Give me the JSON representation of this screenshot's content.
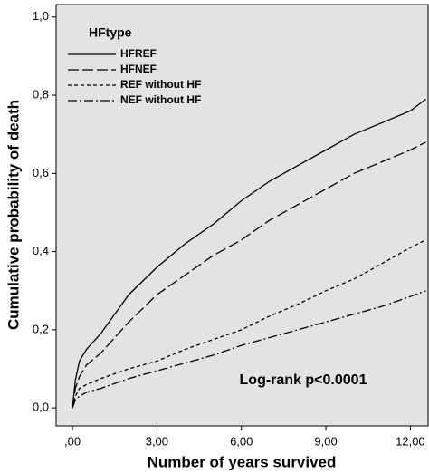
{
  "chart_data": {
    "type": "line",
    "xlabel": "Number of years survived",
    "ylabel": "Cumulative probability of death",
    "legend_title": "HFtype",
    "legend": "upper left",
    "annotation": "Log-rank p<0.0001",
    "x": [
      0,
      0.1,
      0.25,
      0.5,
      1,
      2,
      3,
      4,
      5,
      6,
      7,
      8,
      9,
      10,
      11,
      12,
      12.55
    ],
    "series": [
      {
        "name": "HFREF",
        "color": "#000000",
        "style": "solid",
        "values": [
          0,
          0.07,
          0.12,
          0.15,
          0.19,
          0.29,
          0.36,
          0.42,
          0.47,
          0.53,
          0.58,
          0.62,
          0.66,
          0.7,
          0.73,
          0.76,
          0.79
        ]
      },
      {
        "name": "HFNEF",
        "color": "#000000",
        "style": "long-dash",
        "values": [
          0,
          0.05,
          0.08,
          0.11,
          0.14,
          0.22,
          0.29,
          0.34,
          0.39,
          0.43,
          0.48,
          0.52,
          0.56,
          0.6,
          0.63,
          0.66,
          0.68
        ]
      },
      {
        "name": "REF without HF",
        "color": "#000000",
        "style": "short-dash",
        "values": [
          0,
          0.03,
          0.05,
          0.06,
          0.075,
          0.1,
          0.12,
          0.15,
          0.175,
          0.2,
          0.235,
          0.265,
          0.3,
          0.33,
          0.37,
          0.41,
          0.43
        ]
      },
      {
        "name": "NEF without HF",
        "color": "#000000",
        "style": "dash-dot",
        "values": [
          0,
          0.02,
          0.03,
          0.04,
          0.05,
          0.075,
          0.095,
          0.115,
          0.135,
          0.16,
          0.18,
          0.2,
          0.22,
          0.24,
          0.26,
          0.285,
          0.3
        ]
      }
    ],
    "xlim": [
      -0.58,
      12.63
    ],
    "ylim": [
      -0.046,
      1.032
    ],
    "xticks": [
      {
        "value": 0,
        "label": ",00"
      },
      {
        "value": 3,
        "label": "3,00"
      },
      {
        "value": 6,
        "label": "6,00"
      },
      {
        "value": 9,
        "label": "9,00"
      },
      {
        "value": 12,
        "label": "12,00"
      }
    ],
    "yticks": [
      {
        "value": 0,
        "label": "0,0"
      },
      {
        "value": 0.2,
        "label": "0,2"
      },
      {
        "value": 0.4,
        "label": "0,4"
      },
      {
        "value": 0.6,
        "label": "0,6"
      },
      {
        "value": 0.8,
        "label": "0,8"
      },
      {
        "value": 1,
        "label": "1,0"
      }
    ],
    "background": "#e3e3e3"
  }
}
